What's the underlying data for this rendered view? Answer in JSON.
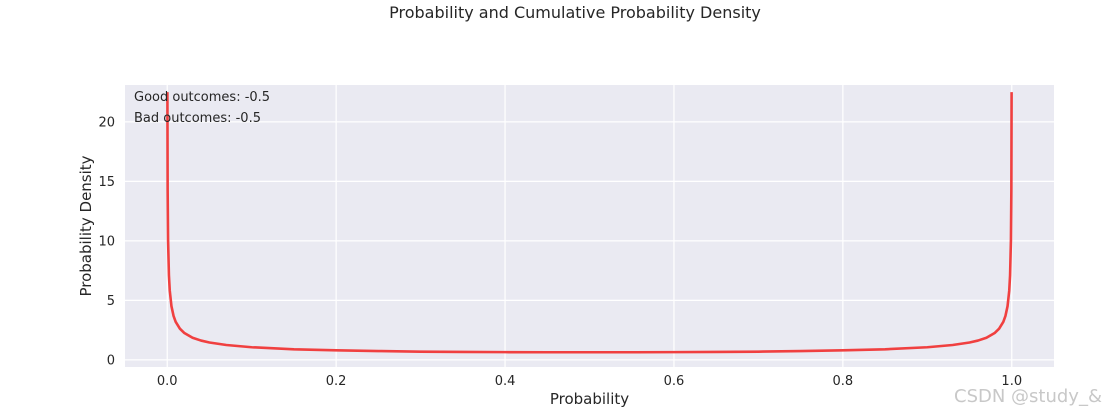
{
  "chart_data": {
    "type": "line",
    "title": "Probability and Cumulative Probability Density",
    "xlabel": "Probability",
    "ylabel": "Probability Density",
    "xlim": [
      -0.05,
      1.05
    ],
    "ylim": [
      -0.6,
      23.1
    ],
    "xticks": [
      0.0,
      0.2,
      0.4,
      0.6,
      0.8,
      1.0
    ],
    "xtick_labels": [
      "0.0",
      "0.2",
      "0.4",
      "0.6",
      "0.8",
      "1.0"
    ],
    "yticks": [
      0,
      5,
      10,
      15,
      20
    ],
    "ytick_labels": [
      "0",
      "5",
      "10",
      "15",
      "20"
    ],
    "grid": true,
    "background": "#eaeaf2",
    "annotations": [
      "Good outcomes: -0.5",
      "Bad outcomes: -0.5"
    ],
    "series": [
      {
        "color": "#f04040",
        "x": [
          0.0002,
          0.0005,
          0.001,
          0.002,
          0.003,
          0.005,
          0.0075,
          0.01,
          0.015,
          0.02,
          0.03,
          0.04,
          0.05,
          0.07,
          0.1,
          0.15,
          0.2,
          0.25,
          0.3,
          0.35,
          0.4,
          0.45,
          0.5,
          0.55,
          0.6,
          0.65,
          0.7,
          0.75,
          0.8,
          0.85,
          0.9,
          0.93,
          0.95,
          0.96,
          0.97,
          0.98,
          0.985,
          0.99,
          0.9925,
          0.995,
          0.997,
          0.998,
          0.999,
          0.9995,
          0.9998
        ],
        "y": [
          22.5,
          14.24,
          10.07,
          7.12,
          5.82,
          4.51,
          3.69,
          3.2,
          2.62,
          2.27,
          1.86,
          1.62,
          1.46,
          1.25,
          1.06,
          0.89,
          0.8,
          0.74,
          0.69,
          0.67,
          0.65,
          0.64,
          0.64,
          0.64,
          0.65,
          0.67,
          0.69,
          0.74,
          0.8,
          0.89,
          1.06,
          1.25,
          1.46,
          1.62,
          1.86,
          2.27,
          2.62,
          3.2,
          3.69,
          4.51,
          5.82,
          7.12,
          10.07,
          14.24,
          22.5
        ]
      }
    ]
  },
  "watermark": "CSDN @study_&"
}
